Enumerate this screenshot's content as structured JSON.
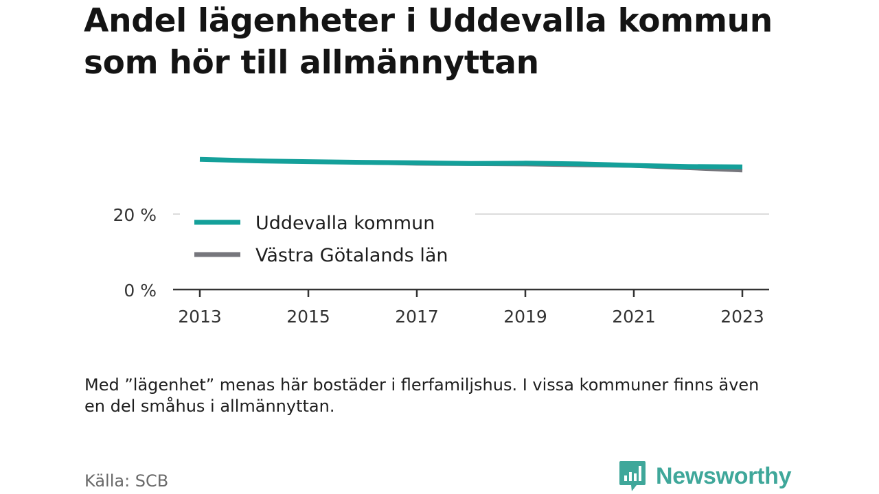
{
  "title": "Andel lägenheter i Uddevalla kommun som hör till allmännyttan",
  "note": "Med ”lägenhet” menas här bostäder i flerfamiljshus. I vissa kommuner finns även en del småhus i allmännyttan.",
  "source": "Källa: SCB",
  "brand": "Newsworthy",
  "colors": {
    "uddevalla": "#14a09a",
    "vastra_gotaland": "#76767c",
    "brand": "#3fa79a"
  },
  "chart_data": {
    "type": "line",
    "title": "Andel lägenheter i Uddevalla kommun som hör till allmännyttan",
    "x": [
      2013,
      2014,
      2015,
      2016,
      2017,
      2018,
      2019,
      2020,
      2021,
      2022,
      2023
    ],
    "x_ticks": [
      2013,
      2015,
      2017,
      2019,
      2021,
      2023
    ],
    "x_tick_labels": [
      "2013",
      "2015",
      "2017",
      "2019",
      "2021",
      "2023"
    ],
    "y_ticks": [
      0,
      20
    ],
    "y_tick_labels": [
      "0 %",
      "20 %"
    ],
    "ylim": [
      0,
      36
    ],
    "grid": true,
    "legend_position": "inside-left",
    "series": [
      {
        "name": "Uddevalla kommun",
        "color": "#14a09a",
        "values": [
          34.5,
          34.1,
          33.9,
          33.7,
          33.6,
          33.4,
          33.5,
          33.3,
          32.9,
          32.6,
          32.5
        ]
      },
      {
        "name": "Västra Götalands län",
        "color": "#76767c",
        "values": [
          34.4,
          34.3,
          33.9,
          33.6,
          33.3,
          33.2,
          33.1,
          32.9,
          32.7,
          32.1,
          31.5
        ]
      }
    ]
  }
}
